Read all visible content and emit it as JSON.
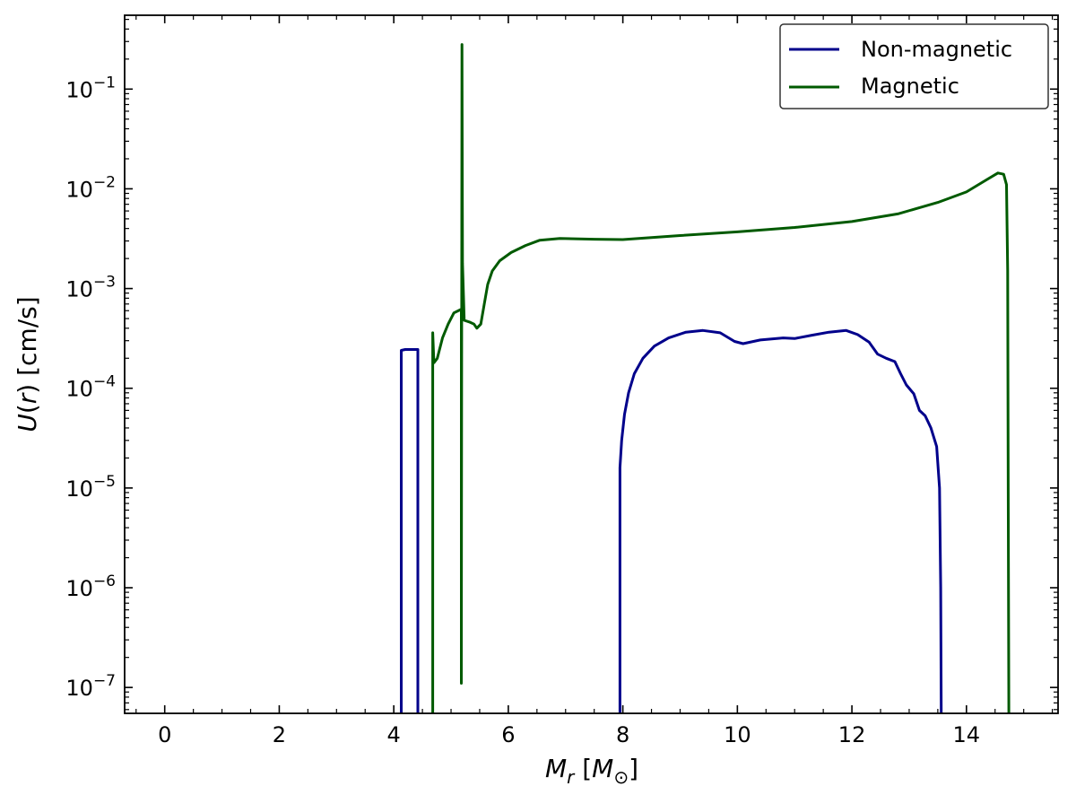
{
  "chart_data": {
    "type": "line",
    "xlabel": "M_r [M_⊙]",
    "ylabel": "U(r) [cm/s]",
    "xlim": [
      -0.7,
      15.6
    ],
    "ylim": [
      5.5e-08,
      0.55
    ],
    "yscale": "log",
    "xticks": [
      0,
      2,
      4,
      6,
      8,
      10,
      12,
      14
    ],
    "yticks": [
      {
        "value": 1e-07,
        "base": "10",
        "exp": "−7"
      },
      {
        "value": 1e-06,
        "base": "10",
        "exp": "−6"
      },
      {
        "value": 1e-05,
        "base": "10",
        "exp": "−5"
      },
      {
        "value": 0.0001,
        "base": "10",
        "exp": "−4"
      },
      {
        "value": 0.001,
        "base": "10",
        "exp": "−3"
      },
      {
        "value": 0.01,
        "base": "10",
        "exp": "−2"
      },
      {
        "value": 0.1,
        "base": "10",
        "exp": "−1"
      }
    ],
    "grid": false,
    "legend_position": "top-right",
    "series": [
      {
        "name": "Non-magnetic",
        "color": "#00008B",
        "segments": [
          [
            [
              4.13,
              5.5e-08
            ],
            [
              4.13,
              0.00024
            ],
            [
              4.2,
              0.000245
            ],
            [
              4.42,
              0.000245
            ],
            [
              4.42,
              5.5e-08
            ]
          ],
          [
            [
              7.95,
              5.5e-08
            ],
            [
              7.95,
              1.6e-05
            ],
            [
              7.98,
              3e-05
            ],
            [
              8.03,
              5.5e-05
            ],
            [
              8.1,
              9e-05
            ],
            [
              8.2,
              0.00014
            ],
            [
              8.35,
              0.0002
            ],
            [
              8.55,
              0.000265
            ],
            [
              8.8,
              0.00032
            ],
            [
              9.1,
              0.000365
            ],
            [
              9.4,
              0.00038
            ],
            [
              9.7,
              0.00036
            ],
            [
              9.95,
              0.000295
            ],
            [
              10.1,
              0.00028
            ],
            [
              10.4,
              0.000305
            ],
            [
              10.8,
              0.00032
            ],
            [
              11.0,
              0.000315
            ],
            [
              11.3,
              0.00034
            ],
            [
              11.6,
              0.000365
            ],
            [
              11.9,
              0.00038
            ],
            [
              12.1,
              0.000345
            ],
            [
              12.3,
              0.00029
            ],
            [
              12.45,
              0.00022
            ],
            [
              12.6,
              0.0002
            ],
            [
              12.75,
              0.000185
            ],
            [
              12.85,
              0.00014
            ],
            [
              12.95,
              0.000108
            ],
            [
              13.08,
              8.8e-05
            ],
            [
              13.18,
              6e-05
            ],
            [
              13.28,
              5.3e-05
            ],
            [
              13.38,
              4e-05
            ],
            [
              13.48,
              2.6e-05
            ],
            [
              13.53,
              1e-05
            ],
            [
              13.55,
              1e-06
            ],
            [
              13.56,
              5.5e-08
            ]
          ]
        ]
      },
      {
        "name": "Magnetic",
        "color": "#005A00",
        "segments": [
          [
            [
              4.68,
              5.5e-08
            ],
            [
              4.68,
              0.00036
            ],
            [
              4.7,
              0.00018
            ],
            [
              4.76,
              0.0002
            ],
            [
              4.85,
              0.00032
            ],
            [
              4.95,
              0.00044
            ],
            [
              5.05,
              0.00057
            ],
            [
              5.18,
              0.00062
            ],
            [
              5.18,
              1.1e-07
            ],
            [
              5.19,
              0.28
            ],
            [
              5.2,
              0.0018
            ],
            [
              5.23,
              0.00048
            ],
            [
              5.33,
              0.00046
            ],
            [
              5.4,
              0.00044
            ],
            [
              5.45,
              0.0004
            ],
            [
              5.52,
              0.00044
            ],
            [
              5.58,
              0.0007
            ],
            [
              5.64,
              0.0011
            ],
            [
              5.72,
              0.0015
            ],
            [
              5.85,
              0.0019
            ],
            [
              6.05,
              0.0023
            ],
            [
              6.3,
              0.0027
            ],
            [
              6.55,
              0.00305
            ],
            [
              6.9,
              0.00318
            ],
            [
              7.5,
              0.00312
            ],
            [
              8.0,
              0.0031
            ],
            [
              9.0,
              0.0034
            ],
            [
              10.0,
              0.0037
            ],
            [
              11.0,
              0.0041
            ],
            [
              12.0,
              0.0047
            ],
            [
              12.8,
              0.0056
            ],
            [
              13.5,
              0.0073
            ],
            [
              14.0,
              0.0093
            ],
            [
              14.35,
              0.0123
            ],
            [
              14.55,
              0.0144
            ],
            [
              14.65,
              0.014
            ],
            [
              14.7,
              0.011
            ],
            [
              14.72,
              0.0015
            ],
            [
              14.73,
              1e-05
            ],
            [
              14.74,
              5.5e-08
            ]
          ]
        ]
      }
    ]
  }
}
